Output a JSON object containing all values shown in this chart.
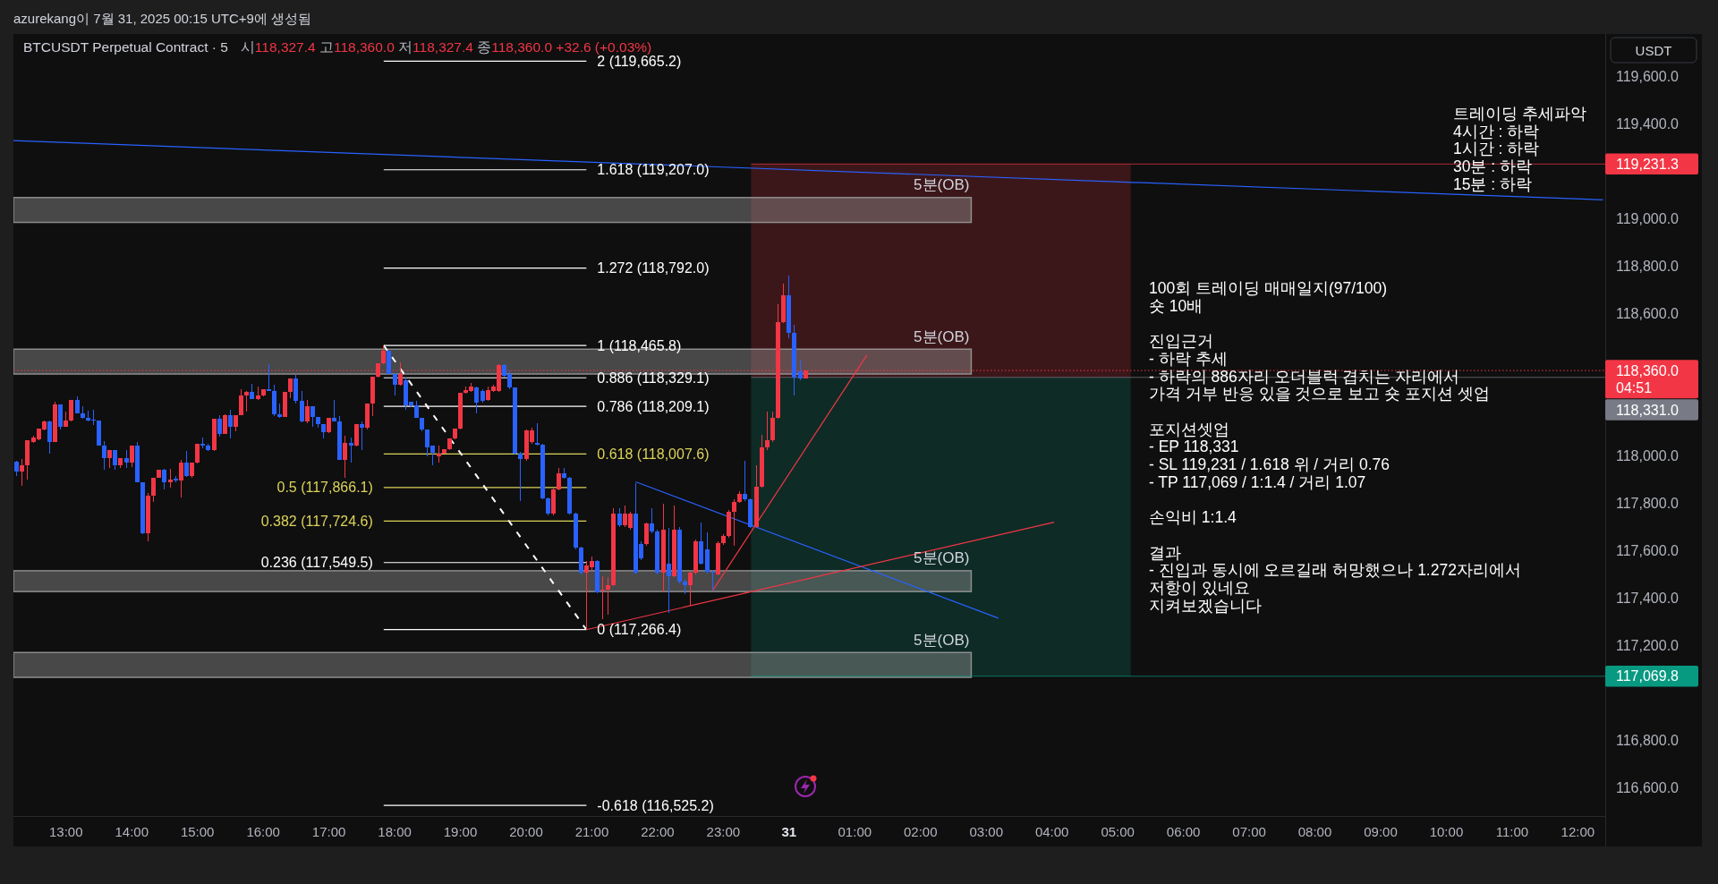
{
  "chart_data": {
    "type": "candlestick",
    "title": "BTCUSDT Perpetual Contract · 5",
    "subtitle": "시118,327.4 고118,360.0 저118,327.4 종118,360.0 +32.6 (+0.03%)",
    "ylabel": "USDT",
    "annotations": [
      "azurekang이 7월 31, 2025 00:15 UTC+9에 생성됨",
      "트레이딩 추세파악\n4시간 : 하락\n1시간 : 하락\n30분 : 하락\n15분 : 하락",
      "100회 트레이딩 매매일지(97/100)\n숏 10배\n\n진입근거\n- 하락 추세\n- 하락의 886자리 오더블럭 겹치는 자리에서\n가격 거부 반응 있을 것으로 보고 숏 포지션 셋업\n\n포지션셋업\n- EP 118,331\n- SL 119,231 / 1.618 위 / 거리 0.76\n- TP 117,069 / 1:1.4 / 거리 1.07\n\n손익비 1:1.4\n\n결과\n- 진입과 동시에 오르길래 허망했으나 1.272자리에서\n저항이 있네요\n지켜보겠습니다"
    ],
    "xlim": [
      "2025-07-30T12:12",
      "2025-07-31T12:25"
    ],
    "ylim": [
      116480,
      119780
    ],
    "xticks": [
      {
        "value": "2025-07-30T13:00",
        "label": "13:00"
      },
      {
        "value": "2025-07-30T14:00",
        "label": "14:00"
      },
      {
        "value": "2025-07-30T15:00",
        "label": "15:00"
      },
      {
        "value": "2025-07-30T16:00",
        "label": "16:00"
      },
      {
        "value": "2025-07-30T17:00",
        "label": "17:00"
      },
      {
        "value": "2025-07-30T18:00",
        "label": "18:00"
      },
      {
        "value": "2025-07-30T19:00",
        "label": "19:00"
      },
      {
        "value": "2025-07-30T20:00",
        "label": "20:00"
      },
      {
        "value": "2025-07-30T21:00",
        "label": "21:00"
      },
      {
        "value": "2025-07-30T22:00",
        "label": "22:00"
      },
      {
        "value": "2025-07-30T23:00",
        "label": "23:00"
      },
      {
        "value": "2025-07-31T00:00",
        "label": "31"
      },
      {
        "value": "2025-07-31T01:00",
        "label": "01:00"
      },
      {
        "value": "2025-07-31T02:00",
        "label": "02:00"
      },
      {
        "value": "2025-07-31T03:00",
        "label": "03:00"
      },
      {
        "value": "2025-07-31T04:00",
        "label": "04:00"
      },
      {
        "value": "2025-07-31T05:00",
        "label": "05:00"
      },
      {
        "value": "2025-07-31T06:00",
        "label": "06:00"
      },
      {
        "value": "2025-07-31T07:00",
        "label": "07:00"
      },
      {
        "value": "2025-07-31T08:00",
        "label": "08:00"
      },
      {
        "value": "2025-07-31T09:00",
        "label": "09:00"
      },
      {
        "value": "2025-07-31T10:00",
        "label": "10:00"
      },
      {
        "value": "2025-07-31T11:00",
        "label": "11:00"
      },
      {
        "value": "2025-07-31T12:00",
        "label": "12:00"
      }
    ],
    "yticks": [
      {
        "value": 119600,
        "label": "119,600.0"
      },
      {
        "value": 119400,
        "label": "119,400.0"
      },
      {
        "value": 119000,
        "label": "119,000.0"
      },
      {
        "value": 118800,
        "label": "118,800.0"
      },
      {
        "value": 118600,
        "label": "118,600.0"
      },
      {
        "value": 118000,
        "label": "118,000.0"
      },
      {
        "value": 117800,
        "label": "117,800.0"
      },
      {
        "value": 117600,
        "label": "117,600.0"
      },
      {
        "value": 117400,
        "label": "117,400.0"
      },
      {
        "value": 117200,
        "label": "117,200.0"
      },
      {
        "value": 116800,
        "label": "116,800.0"
      },
      {
        "value": 116600,
        "label": "116,600.0"
      }
    ],
    "x": [
      "2025-07-30T12:15",
      "2025-07-30T12:20",
      "2025-07-30T12:25",
      "2025-07-30T12:30",
      "2025-07-30T12:35",
      "2025-07-30T12:40",
      "2025-07-30T12:45",
      "2025-07-30T12:50",
      "2025-07-30T12:55",
      "2025-07-30T13:00",
      "2025-07-30T13:05",
      "2025-07-30T13:10",
      "2025-07-30T13:15",
      "2025-07-30T13:20",
      "2025-07-30T13:25",
      "2025-07-30T13:30",
      "2025-07-30T13:35",
      "2025-07-30T13:40",
      "2025-07-30T13:45",
      "2025-07-30T13:50",
      "2025-07-30T13:55",
      "2025-07-30T14:00",
      "2025-07-30T14:05",
      "2025-07-30T14:10",
      "2025-07-30T14:15",
      "2025-07-30T14:20",
      "2025-07-30T14:25",
      "2025-07-30T14:30",
      "2025-07-30T14:35",
      "2025-07-30T14:40",
      "2025-07-30T14:45",
      "2025-07-30T14:50",
      "2025-07-30T14:55",
      "2025-07-30T15:00",
      "2025-07-30T15:05",
      "2025-07-30T15:10",
      "2025-07-30T15:15",
      "2025-07-30T15:20",
      "2025-07-30T15:25",
      "2025-07-30T15:30",
      "2025-07-30T15:35",
      "2025-07-30T15:40",
      "2025-07-30T15:45",
      "2025-07-30T15:50",
      "2025-07-30T15:55",
      "2025-07-30T16:00",
      "2025-07-30T16:05",
      "2025-07-30T16:10",
      "2025-07-30T16:15",
      "2025-07-30T16:20",
      "2025-07-30T16:25",
      "2025-07-30T16:30",
      "2025-07-30T16:35",
      "2025-07-30T16:40",
      "2025-07-30T16:45",
      "2025-07-30T16:50",
      "2025-07-30T16:55",
      "2025-07-30T17:00",
      "2025-07-30T17:05",
      "2025-07-30T17:10",
      "2025-07-30T17:15",
      "2025-07-30T17:20",
      "2025-07-30T17:25",
      "2025-07-30T17:30",
      "2025-07-30T17:35",
      "2025-07-30T17:40",
      "2025-07-30T17:45",
      "2025-07-30T17:50",
      "2025-07-30T17:55",
      "2025-07-30T18:00",
      "2025-07-30T18:05",
      "2025-07-30T18:10",
      "2025-07-30T18:15",
      "2025-07-30T18:20",
      "2025-07-30T18:25",
      "2025-07-30T18:30",
      "2025-07-30T18:35",
      "2025-07-30T18:40",
      "2025-07-30T18:45",
      "2025-07-30T18:50",
      "2025-07-30T18:55",
      "2025-07-30T19:00",
      "2025-07-30T19:05",
      "2025-07-30T19:10",
      "2025-07-30T19:15",
      "2025-07-30T19:20",
      "2025-07-30T19:25",
      "2025-07-30T19:30",
      "2025-07-30T19:35",
      "2025-07-30T19:40",
      "2025-07-30T19:45",
      "2025-07-30T19:50",
      "2025-07-30T19:55",
      "2025-07-30T20:00",
      "2025-07-30T20:05",
      "2025-07-30T20:10",
      "2025-07-30T20:15",
      "2025-07-30T20:20",
      "2025-07-30T20:25",
      "2025-07-30T20:30",
      "2025-07-30T20:35",
      "2025-07-30T20:40",
      "2025-07-30T20:45",
      "2025-07-30T20:50",
      "2025-07-30T20:55",
      "2025-07-30T21:00",
      "2025-07-30T21:05",
      "2025-07-30T21:10",
      "2025-07-30T21:15",
      "2025-07-30T21:20",
      "2025-07-30T21:25",
      "2025-07-30T21:30",
      "2025-07-30T21:35",
      "2025-07-30T21:40",
      "2025-07-30T21:45",
      "2025-07-30T21:50",
      "2025-07-30T21:55",
      "2025-07-30T22:00",
      "2025-07-30T22:05",
      "2025-07-30T22:10",
      "2025-07-30T22:15",
      "2025-07-30T22:20",
      "2025-07-30T22:25",
      "2025-07-30T22:30",
      "2025-07-30T22:35",
      "2025-07-30T22:40",
      "2025-07-30T22:45",
      "2025-07-30T22:50",
      "2025-07-30T22:55",
      "2025-07-30T23:00",
      "2025-07-30T23:05",
      "2025-07-30T23:10",
      "2025-07-30T23:15",
      "2025-07-30T23:20",
      "2025-07-30T23:25",
      "2025-07-30T23:30",
      "2025-07-30T23:35",
      "2025-07-30T23:40",
      "2025-07-30T23:45",
      "2025-07-30T23:50",
      "2025-07-30T23:55",
      "2025-07-31T00:00",
      "2025-07-31T00:05",
      "2025-07-31T00:10",
      "2025-07-31T00:15"
    ],
    "ohlc": [
      [
        117975,
        117979,
        117916,
        117934
      ],
      [
        117934,
        117987,
        117875,
        117960
      ],
      [
        117960,
        118064,
        117900,
        118064
      ],
      [
        118060,
        118083,
        118054,
        118078
      ],
      [
        118069,
        118116,
        118067,
        118116
      ],
      [
        118111,
        118149,
        118108,
        118146
      ],
      [
        118146,
        118149,
        118008,
        118057
      ],
      [
        118057,
        118229,
        118057,
        118217
      ],
      [
        118217,
        118217,
        118113,
        118121
      ],
      [
        118123,
        118186,
        118121,
        118149
      ],
      [
        118149,
        118237,
        118146,
        118237
      ],
      [
        118237,
        118249,
        118180,
        118180
      ],
      [
        118180,
        118209,
        118155,
        118159
      ],
      [
        118159,
        118190,
        118146,
        118149
      ],
      [
        118151,
        118193,
        118130,
        118149
      ],
      [
        118149,
        118149,
        118044,
        118044
      ],
      [
        118044,
        118063,
        117941,
        117991
      ],
      [
        117991,
        118023,
        117947,
        118023
      ],
      [
        118023,
        118023,
        117943,
        117960
      ],
      [
        117960,
        117991,
        117947,
        117991
      ],
      [
        117991,
        118023,
        117950,
        117972
      ],
      [
        117972,
        118045,
        117953,
        118045
      ],
      [
        118045,
        118057,
        117890,
        117890
      ],
      [
        117890,
        117890,
        117670,
        117672
      ],
      [
        117672,
        117844,
        117638,
        117831
      ],
      [
        117831,
        117907,
        117806,
        117907
      ],
      [
        117907,
        117940,
        117907,
        117940
      ],
      [
        117940,
        117945,
        117859,
        117890
      ],
      [
        117890,
        117945,
        117865,
        117899
      ],
      [
        117903,
        117916,
        117887,
        117897
      ],
      [
        117897,
        117982,
        117824,
        117970
      ],
      [
        117970,
        118019,
        117912,
        117916
      ],
      [
        117916,
        117970,
        117909,
        117970
      ],
      [
        117970,
        118052,
        117967,
        118052
      ],
      [
        118052,
        118076,
        118033,
        118042
      ],
      [
        118042,
        118050,
        118020,
        118023
      ],
      [
        118023,
        118155,
        118020,
        118155
      ],
      [
        118155,
        118171,
        118082,
        118092
      ],
      [
        118092,
        118174,
        118092,
        118171
      ],
      [
        118171,
        118193,
        118073,
        118121
      ],
      [
        118121,
        118171,
        118105,
        118171
      ],
      [
        118171,
        118281,
        118171,
        118255
      ],
      [
        118255,
        118275,
        118186,
        118270
      ],
      [
        118270,
        118302,
        118239,
        118239
      ],
      [
        118239,
        118294,
        118237,
        118255
      ],
      [
        118255,
        118281,
        118252,
        118281
      ],
      [
        118281,
        118386,
        118275,
        118275
      ],
      [
        118275,
        118300,
        118168,
        118174
      ],
      [
        118174,
        118222,
        118161,
        118165
      ],
      [
        118165,
        118270,
        118165,
        118270
      ],
      [
        118270,
        118328,
        118242,
        118328
      ],
      [
        118328,
        118343,
        118222,
        118231
      ],
      [
        118231,
        118275,
        118142,
        118146
      ],
      [
        118146,
        118234,
        118139,
        118209
      ],
      [
        118209,
        118209,
        118123,
        118164
      ],
      [
        118164,
        118164,
        118117,
        118134
      ],
      [
        118134,
        118134,
        118073,
        118098
      ],
      [
        118098,
        118159,
        118096,
        118159
      ],
      [
        118159,
        118234,
        118146,
        118146
      ],
      [
        118146,
        118168,
        117981,
        117981
      ],
      [
        117981,
        118083,
        117909,
        118054
      ],
      [
        118054,
        118076,
        117972,
        118044
      ],
      [
        118044,
        118134,
        118039,
        118134
      ],
      [
        118134,
        118146,
        118025,
        118117
      ],
      [
        118117,
        118222,
        118111,
        118222
      ],
      [
        118222,
        118333,
        118168,
        118333
      ],
      [
        118333,
        118391,
        118330,
        118391
      ],
      [
        118391,
        118465.8,
        118388,
        118445
      ],
      [
        118445,
        118445,
        118344,
        118344
      ],
      [
        118344,
        118350,
        118256,
        118300
      ],
      [
        118300,
        118394,
        118295,
        118344
      ],
      [
        118319,
        118331,
        118193,
        118212
      ],
      [
        118227,
        118227,
        118205,
        118212
      ],
      [
        118212,
        118231,
        118159,
        118159
      ],
      [
        118159,
        118159,
        118105,
        118111
      ],
      [
        118111,
        118111,
        117997,
        118035
      ],
      [
        118042,
        118042,
        117960,
        118013
      ],
      [
        117997,
        118042,
        117972,
        118010
      ],
      [
        118010,
        118029,
        118008,
        118029
      ],
      [
        118029,
        118073,
        118025,
        118073
      ],
      [
        118073,
        118115,
        118070,
        118115
      ],
      [
        118115,
        118266,
        118110,
        118266
      ],
      [
        118266,
        118294,
        118262,
        118278
      ],
      [
        118275,
        118306,
        118270,
        118294
      ],
      [
        118287,
        118294,
        118180,
        118224
      ],
      [
        118275,
        118280,
        118225,
        118231
      ],
      [
        118237,
        118294,
        118231,
        118278
      ],
      [
        118272,
        118300,
        118268,
        118294
      ],
      [
        118275,
        118385,
        118270,
        118382
      ],
      [
        118382,
        118388,
        118330,
        118338
      ],
      [
        118344,
        118360,
        118280,
        118287
      ],
      [
        118287,
        118290,
        118005,
        118010
      ],
      [
        118010,
        118015,
        117808,
        117987
      ],
      [
        117987,
        118110,
        117980,
        118108
      ],
      [
        118060,
        118120,
        118050,
        118108
      ],
      [
        118054,
        118139,
        118042,
        118048
      ],
      [
        118048,
        118050,
        117815,
        117821
      ],
      [
        117821,
        117825,
        117750,
        117758
      ],
      [
        117758,
        117862,
        117750,
        117859
      ],
      [
        117859,
        117947,
        117855,
        117928
      ],
      [
        117928,
        117947,
        117905,
        117909
      ],
      [
        117909,
        117912,
        117752,
        117758
      ],
      [
        117758,
        117760,
        117605,
        117613
      ],
      [
        117613,
        117615,
        117500,
        117506
      ],
      [
        117506,
        117556,
        117266.4,
        117538
      ],
      [
        117531,
        117575,
        117520,
        117556
      ],
      [
        117556,
        117560,
        117420,
        117424
      ],
      [
        117430,
        117493,
        117311,
        117437
      ],
      [
        117437,
        117487,
        117330,
        117456
      ],
      [
        117456,
        117777,
        117450,
        117758
      ],
      [
        117758,
        117777,
        117700,
        117708
      ],
      [
        117708,
        117790,
        117700,
        117758
      ],
      [
        117695,
        117764,
        117690,
        117758
      ],
      [
        117758,
        117884,
        117500,
        117506
      ],
      [
        117626,
        117640,
        117560,
        117569
      ],
      [
        117626,
        117720,
        117620,
        117714
      ],
      [
        117714,
        117777,
        117675,
        117682
      ],
      [
        117682,
        117690,
        117500,
        117506
      ],
      [
        117506,
        117796,
        117424,
        117689
      ],
      [
        117544,
        117695,
        117336,
        117493
      ],
      [
        117493,
        117790,
        117488,
        117689
      ],
      [
        117689,
        117700,
        117462,
        117468
      ],
      [
        117468,
        117475,
        117418,
        117456
      ],
      [
        117456,
        117510,
        117367,
        117506
      ],
      [
        117506,
        117645,
        117500,
        117638
      ],
      [
        117638,
        117720,
        117540,
        117544
      ],
      [
        117607,
        117676,
        117505,
        117512
      ],
      [
        117512,
        117520,
        117430,
        117506
      ],
      [
        117500,
        117640,
        117495,
        117632
      ],
      [
        117632,
        117668,
        117625,
        117660
      ],
      [
        117660,
        117770,
        117655,
        117764
      ],
      [
        117764,
        117815,
        117619,
        117806
      ],
      [
        117806,
        117850,
        117800,
        117840
      ],
      [
        117840,
        117979,
        117810,
        117815
      ],
      [
        117815,
        117820,
        117695,
        117701
      ],
      [
        117701,
        117960,
        117695,
        117871
      ],
      [
        117871,
        118090,
        117865,
        118035
      ],
      [
        118035,
        118186,
        118023,
        118067
      ],
      [
        118067,
        118186,
        118060,
        118161
      ],
      [
        118161,
        118640,
        118155,
        118564
      ],
      [
        118564,
        118728,
        118560,
        118678
      ],
      [
        118678,
        118760,
        118495,
        118520
      ],
      [
        118520,
        118552,
        118256,
        118331
      ],
      [
        118357,
        118407,
        118319,
        118327.4
      ],
      [
        118327.4,
        118360.0,
        118327.4,
        118360.0
      ]
    ],
    "colors": [
      "#2962ff",
      "#f23645",
      "#f23645",
      "#f23645",
      "#f23645",
      "#f23645",
      "#2962ff",
      "#f23645",
      "#2962ff",
      "#f23645",
      "#f23645",
      "#2962ff",
      "#2962ff",
      "#2962ff",
      "#2962ff",
      "#2962ff",
      "#2962ff",
      "#f23645",
      "#2962ff",
      "#f23645",
      "#2962ff",
      "#f23645",
      "#2962ff",
      "#2962ff",
      "#f23645",
      "#f23645",
      "#f23645",
      "#2962ff",
      "#f23645",
      "#2962ff",
      "#f23645",
      "#2962ff",
      "#f23645",
      "#f23645",
      "#2962ff",
      "#2962ff",
      "#f23645",
      "#2962ff",
      "#f23645",
      "#2962ff",
      "#f23645",
      "#f23645",
      "#f23645",
      "#2962ff",
      "#f23645",
      "#f23645",
      "#2962ff",
      "#2962ff",
      "#2962ff",
      "#f23645",
      "#f23645",
      "#2962ff",
      "#2962ff",
      "#f23645",
      "#2962ff",
      "#2962ff",
      "#2962ff",
      "#f23645",
      "#2962ff",
      "#2962ff",
      "#f23645",
      "#2962ff",
      "#f23645",
      "#2962ff",
      "#f23645",
      "#f23645",
      "#f23645",
      "#f23645",
      "#2962ff",
      "#2962ff",
      "#f23645",
      "#2962ff",
      "#2962ff",
      "#2962ff",
      "#2962ff",
      "#2962ff",
      "#2962ff",
      "#f23645",
      "#f23645",
      "#f23645",
      "#f23645",
      "#f23645",
      "#f23645",
      "#f23645",
      "#2962ff",
      "#2962ff",
      "#f23645",
      "#f23645",
      "#f23645",
      "#2962ff",
      "#2962ff",
      "#2962ff",
      "#2962ff",
      "#f23645",
      "#f23645",
      "#2962ff",
      "#2962ff",
      "#2962ff",
      "#f23645",
      "#f23645",
      "#2962ff",
      "#2962ff",
      "#2962ff",
      "#2962ff",
      "#f23645",
      "#f23645",
      "#2962ff",
      "#f23645",
      "#f23645",
      "#f23645",
      "#2962ff",
      "#f23645",
      "#f23645",
      "#2962ff",
      "#2962ff",
      "#f23645",
      "#2962ff",
      "#2962ff",
      "#f23645",
      "#2962ff",
      "#f23645",
      "#2962ff",
      "#2962ff",
      "#f23645",
      "#f23645",
      "#2962ff",
      "#2962ff",
      "#2962ff",
      "#f23645",
      "#f23645",
      "#f23645",
      "#f23645",
      "#f23645",
      "#2962ff",
      "#2962ff",
      "#f23645",
      "#f23645",
      "#f23645",
      "#f23645",
      "#f23645",
      "#f23645",
      "#2962ff",
      "#2962ff",
      "#2962ff",
      "#f23645"
    ],
    "series": [
      {
        "type": "line",
        "name": "2 (119,665.2)",
        "color": "#ffffff",
        "x": [
          "2025-07-30T17:50",
          "2025-07-30T20:55"
        ],
        "values": [
          119665.2,
          119665.2
        ]
      },
      {
        "type": "line",
        "name": "1.618 (119,207.0)",
        "color": "#ffffff",
        "x": [
          "2025-07-30T17:50",
          "2025-07-30T20:55"
        ],
        "values": [
          119207.0,
          119207.0
        ]
      },
      {
        "type": "line",
        "name": "1.272 (118,792.0)",
        "color": "#ffffff",
        "x": [
          "2025-07-30T17:50",
          "2025-07-30T20:55"
        ],
        "values": [
          118792.0,
          118792.0
        ]
      },
      {
        "type": "line",
        "name": "1 (118,465.8)",
        "color": "#ffffff",
        "x": [
          "2025-07-30T17:50",
          "2025-07-30T20:55"
        ],
        "values": [
          118465.8,
          118465.8
        ]
      },
      {
        "type": "line",
        "name": "0.886 (118,329.1)",
        "color": "#ffffff",
        "x": [
          "2025-07-30T17:50",
          "2025-07-30T20:55"
        ],
        "values": [
          118329.1,
          118329.1
        ]
      },
      {
        "type": "line",
        "name": "0.786 (118,209.1)",
        "color": "#ffffff",
        "x": [
          "2025-07-30T17:50",
          "2025-07-30T20:55"
        ],
        "values": [
          118209.1,
          118209.1
        ]
      },
      {
        "type": "line",
        "name": "0.618 (118,007.6)",
        "color": "#dcd35a",
        "x": [
          "2025-07-30T17:50",
          "2025-07-30T20:55"
        ],
        "values": [
          118007.6,
          118007.6
        ]
      },
      {
        "type": "line",
        "name": "0.5 (117,866.1)",
        "color": "#dcd35a",
        "x": [
          "2025-07-30T17:50",
          "2025-07-30T20:55"
        ],
        "values": [
          117866.1,
          117866.1
        ]
      },
      {
        "type": "line",
        "name": "0.382 (117,724.6)",
        "color": "#dcd35a",
        "x": [
          "2025-07-30T17:50",
          "2025-07-30T20:55"
        ],
        "values": [
          117724.6,
          117724.6
        ]
      },
      {
        "type": "line",
        "name": "0.236 (117,549.5)",
        "color": "#ffffff",
        "x": [
          "2025-07-30T17:50",
          "2025-07-30T20:55"
        ],
        "values": [
          117549.5,
          117549.5
        ]
      },
      {
        "type": "line",
        "name": "0 (117,266.4)",
        "color": "#ffffff",
        "x": [
          "2025-07-30T17:50",
          "2025-07-30T20:55"
        ],
        "values": [
          117266.4,
          117266.4
        ]
      },
      {
        "type": "line",
        "name": "-0.618 (116,525.2)",
        "color": "#ffffff",
        "x": [
          "2025-07-30T17:50",
          "2025-07-30T20:55"
        ],
        "values": [
          116525.2,
          116525.2
        ]
      },
      {
        "type": "line",
        "color": "#ffffff",
        "line_style": "dashed",
        "x": [
          "2025-07-30T17:50",
          "2025-07-30T20:55"
        ],
        "values": [
          118465.8,
          117266.4
        ]
      },
      {
        "type": "line",
        "color": "#2962ff",
        "x": [
          "2025-07-30T12:12",
          "2025-07-31T12:23"
        ],
        "values": [
          119330,
          119080
        ]
      },
      {
        "type": "line",
        "color": "#2962ff",
        "x": [
          "2025-07-30T21:40",
          "2025-07-31T03:11"
        ],
        "values": [
          117890,
          117315
        ]
      },
      {
        "type": "line",
        "color": "#f23645",
        "x": [
          "2025-07-30T20:55",
          "2025-07-31T04:02"
        ],
        "values": [
          117266.4,
          117720
        ]
      },
      {
        "type": "line",
        "color": "#f23645",
        "x": [
          "2025-07-30T22:50",
          "2025-07-31T01:11"
        ],
        "values": [
          117430,
          118425
        ]
      }
    ],
    "bands": [
      {
        "axis": "y",
        "from": 118331.0,
        "to": 119231.3,
        "color": "#f23645"
      },
      {
        "axis": "y",
        "from": 117069.8,
        "to": 118331.0,
        "color": "#089981"
      },
      {
        "axis": "y",
        "from": 118985,
        "to": 119090,
        "label": "5분(OB)",
        "color": "#9e9e9e"
      },
      {
        "axis": "y",
        "from": 118345,
        "to": 118450,
        "label": "5분(OB)",
        "color": "#9e9e9e"
      },
      {
        "axis": "y",
        "from": 117427,
        "to": 117515,
        "label": "5분(OB)",
        "color": "#9e9e9e"
      },
      {
        "axis": "y",
        "from": 117065,
        "to": 117170,
        "label": "5분(OB)",
        "color": "#9e9e9e"
      }
    ],
    "ref_lines": [
      {
        "axis": "y",
        "value": 119231.3,
        "label": "119,231.3",
        "color": "#f23645"
      },
      {
        "axis": "y",
        "value": 118360.0,
        "label": "118,360.0\n04:51",
        "color": "#f23645",
        "line_style": "dotted"
      },
      {
        "axis": "y",
        "value": 118331.0,
        "label": "118,331.0",
        "color": "#787b86"
      },
      {
        "axis": "y",
        "value": 117069.8,
        "label": "117,069.8",
        "color": "#089981"
      }
    ]
  }
}
